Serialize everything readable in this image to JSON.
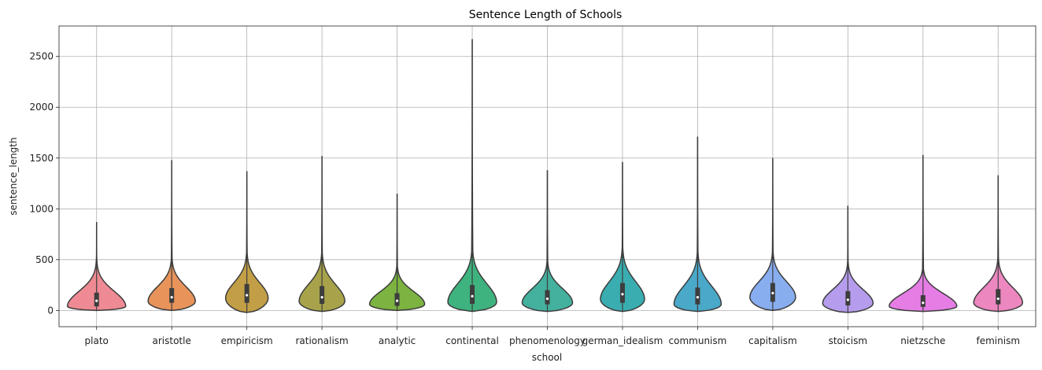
{
  "chart_data": {
    "type": "violin",
    "title": "Sentence Length of Schools",
    "xlabel": "school",
    "ylabel": "sentence_length",
    "ylim": [
      -160,
      2800
    ],
    "yticks": [
      0,
      500,
      1000,
      1500,
      2000,
      2500
    ],
    "grid": true,
    "categories": [
      "plato",
      "aristotle",
      "empiricism",
      "rationalism",
      "analytic",
      "continental",
      "phenomenology",
      "german_idealism",
      "communism",
      "capitalism",
      "stoicism",
      "nietzsche",
      "feminism"
    ],
    "violins": [
      {
        "category": "plato",
        "color": "#ee8a93",
        "min": 0,
        "max": 870,
        "q1": 40,
        "median": 95,
        "q3": 175,
        "peak": 40,
        "peak_halfwidth": 37
      },
      {
        "category": "aristotle",
        "color": "#e8935a",
        "min": 0,
        "max": 1480,
        "q1": 75,
        "median": 130,
        "q3": 220,
        "peak": 90,
        "peak_halfwidth": 30
      },
      {
        "category": "empiricism",
        "color": "#c29f46",
        "min": -20,
        "max": 1370,
        "q1": 75,
        "median": 150,
        "q3": 260,
        "peak": 120,
        "peak_halfwidth": 27
      },
      {
        "category": "rationalism",
        "color": "#a8a34a",
        "min": -10,
        "max": 1520,
        "q1": 65,
        "median": 130,
        "q3": 240,
        "peak": 90,
        "peak_halfwidth": 29
      },
      {
        "category": "analytic",
        "color": "#7cb341",
        "min": 0,
        "max": 1150,
        "q1": 45,
        "median": 95,
        "q3": 170,
        "peak": 60,
        "peak_halfwidth": 35
      },
      {
        "category": "continental",
        "color": "#3fb37f",
        "min": -10,
        "max": 2670,
        "q1": 65,
        "median": 140,
        "q3": 250,
        "peak": 80,
        "peak_halfwidth": 31
      },
      {
        "category": "phenomenology",
        "color": "#44b09e",
        "min": -10,
        "max": 1380,
        "q1": 60,
        "median": 115,
        "q3": 200,
        "peak": 75,
        "peak_halfwidth": 32
      },
      {
        "category": "german_idealism",
        "color": "#3aadb0",
        "min": -10,
        "max": 1460,
        "q1": 75,
        "median": 160,
        "q3": 270,
        "peak": 110,
        "peak_halfwidth": 28
      },
      {
        "category": "communism",
        "color": "#4aa8c9",
        "min": -10,
        "max": 1710,
        "q1": 60,
        "median": 130,
        "q3": 225,
        "peak": 60,
        "peak_halfwidth": 30
      },
      {
        "category": "capitalism",
        "color": "#88aef0",
        "min": 0,
        "max": 1500,
        "q1": 85,
        "median": 170,
        "q3": 270,
        "peak": 130,
        "peak_halfwidth": 29
      },
      {
        "category": "stoicism",
        "color": "#b59cec",
        "min": -20,
        "max": 1030,
        "q1": 50,
        "median": 105,
        "q3": 190,
        "peak": 70,
        "peak_halfwidth": 32
      },
      {
        "category": "nietzsche",
        "color": "#e57de5",
        "min": -10,
        "max": 1530,
        "q1": 35,
        "median": 75,
        "q3": 150,
        "peak": 40,
        "peak_halfwidth": 43
      },
      {
        "category": "feminism",
        "color": "#ec87c0",
        "min": -10,
        "max": 1330,
        "q1": 60,
        "median": 115,
        "q3": 210,
        "peak": 75,
        "peak_halfwidth": 31
      }
    ]
  }
}
